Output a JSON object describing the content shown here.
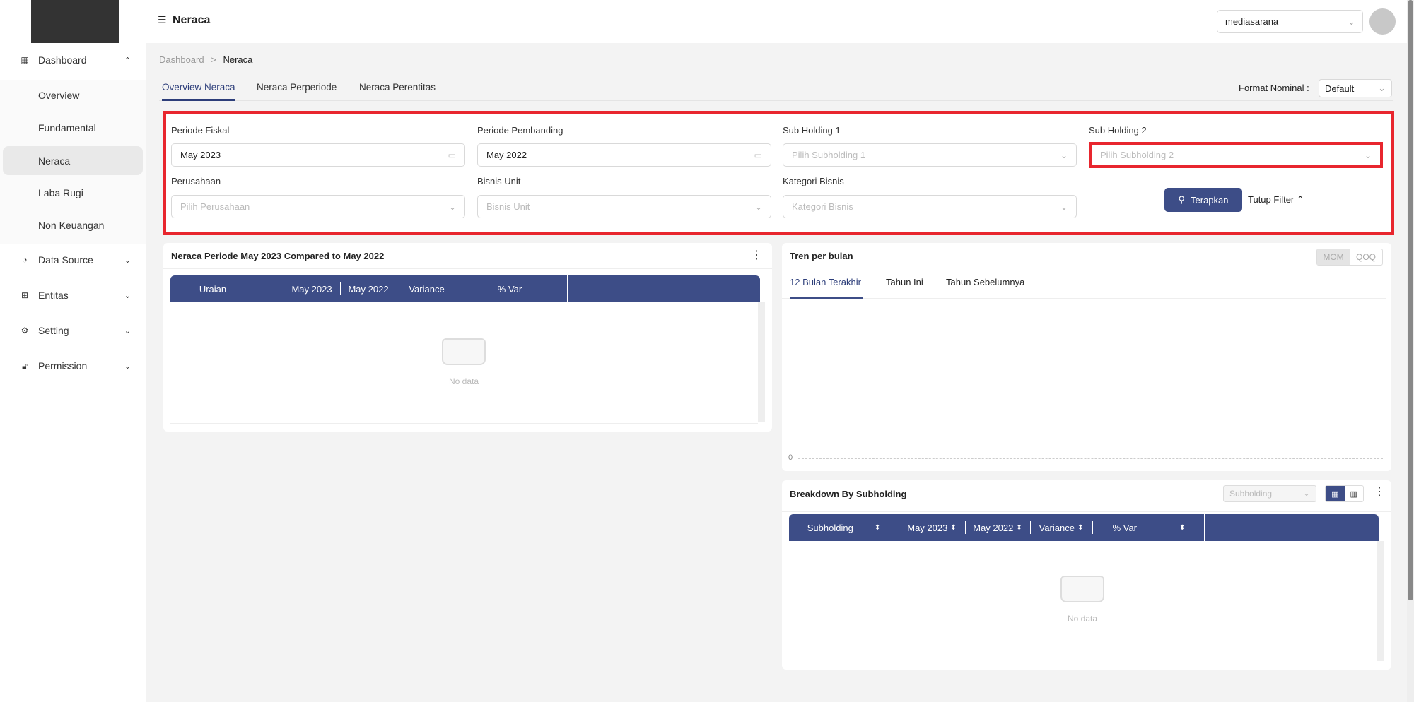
{
  "sidebar": {
    "items": [
      {
        "label": "Dashboard",
        "icon": "grid-icon",
        "expanded": true
      },
      {
        "label": "Data Source",
        "icon": "pie-chart-icon"
      },
      {
        "label": "Entitas",
        "icon": "table-icon"
      },
      {
        "label": "Setting",
        "icon": "gear-icon"
      },
      {
        "label": "Permission",
        "icon": "lock-icon"
      }
    ],
    "submenu": [
      "Overview",
      "Fundamental",
      "Neraca",
      "Laba Rugi",
      "Non Keuangan"
    ],
    "active": "Neraca"
  },
  "header": {
    "title": "Neraca",
    "account": "mediasarana"
  },
  "breadcrumb": {
    "root": "Dashboard",
    "sep": ">",
    "current": "Neraca"
  },
  "tabs": [
    {
      "label": "Overview Neraca",
      "active": true
    },
    {
      "label": "Neraca Perperiode"
    },
    {
      "label": "Neraca Perentitas"
    }
  ],
  "format_nominal": {
    "label": "Format Nominal :",
    "value": "Default"
  },
  "filter": {
    "periode_fiskal": {
      "label": "Periode Fiskal",
      "value": "May 2023"
    },
    "periode_pembanding": {
      "label": "Periode Pembanding",
      "value": "May 2022"
    },
    "sub_holding_1": {
      "label": "Sub Holding 1",
      "placeholder": "Pilih Subholding 1"
    },
    "sub_holding_2": {
      "label": "Sub Holding 2",
      "placeholder": "Pilih Subholding 2"
    },
    "perusahaan": {
      "label": "Perusahaan",
      "placeholder": "Pilih Perusahaan"
    },
    "bisnis_unit": {
      "label": "Bisnis Unit",
      "placeholder": "Bisnis Unit"
    },
    "kategori_bisnis": {
      "label": "Kategori Bisnis",
      "placeholder": "Kategori Bisnis"
    },
    "apply": "Terapkan",
    "close": "Tutup Filter",
    "highlight_color": "#e8262e"
  },
  "neraca_card": {
    "title": "Neraca Periode May 2023 Compared to May 2022",
    "columns": [
      "Uraian",
      "May 2023",
      "May 2022",
      "Variance",
      "% Var"
    ],
    "empty": "No data"
  },
  "trend_card": {
    "title": "Tren per bulan",
    "toggle": [
      "MOM",
      "QOQ"
    ],
    "tabs": [
      "12 Bulan Terakhir",
      "Tahun Ini",
      "Tahun Sebelumnya"
    ],
    "active_tab": "12 Bulan Terakhir",
    "y_tick": "0"
  },
  "breakdown_card": {
    "title": "Breakdown By Subholding",
    "select": "Subholding",
    "columns": [
      "Subholding",
      "May 2023",
      "May 2022",
      "Variance",
      "% Var"
    ],
    "empty": "No data"
  },
  "colors": {
    "primary": "#3d4d87",
    "accent_red": "#e8262e"
  }
}
